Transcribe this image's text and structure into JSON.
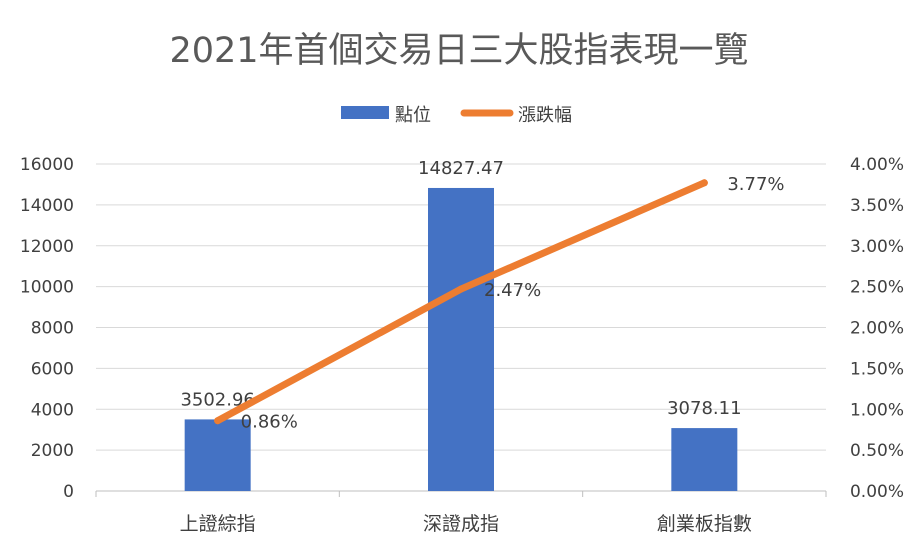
{
  "chart_data": {
    "type": "bar",
    "title": "2021年首個交易日三大股指表現一覽",
    "categories": [
      "上證綜指",
      "深證成指",
      "創業板指數"
    ],
    "series": [
      {
        "name": "點位",
        "kind": "bar",
        "axis": "left",
        "values": [
          3502.96,
          14827.47,
          3078.11
        ],
        "labels": [
          "3502.96",
          "14827.47",
          "3078.11"
        ]
      },
      {
        "name": "漲跌幅",
        "kind": "line",
        "axis": "right",
        "values": [
          0.86,
          2.47,
          3.77
        ],
        "labels": [
          "0.86%",
          "2.47%",
          "3.77%"
        ]
      }
    ],
    "y_left": {
      "min": 0,
      "max": 16000,
      "step": 2000,
      "ticks": [
        "0",
        "2000",
        "4000",
        "6000",
        "8000",
        "10000",
        "12000",
        "14000",
        "16000"
      ]
    },
    "y_right": {
      "min": 0,
      "max": 4,
      "step": 0.5,
      "ticks": [
        "0.00%",
        "0.50%",
        "1.00%",
        "1.50%",
        "2.00%",
        "2.50%",
        "3.00%",
        "3.50%",
        "4.00%"
      ]
    },
    "legend_position": "top-center",
    "grid": true,
    "colors": {
      "bar": "#4472C4",
      "line": "#ED7D31",
      "grid": "#D9D9D9",
      "text": "#404040",
      "title": "#595959"
    }
  }
}
